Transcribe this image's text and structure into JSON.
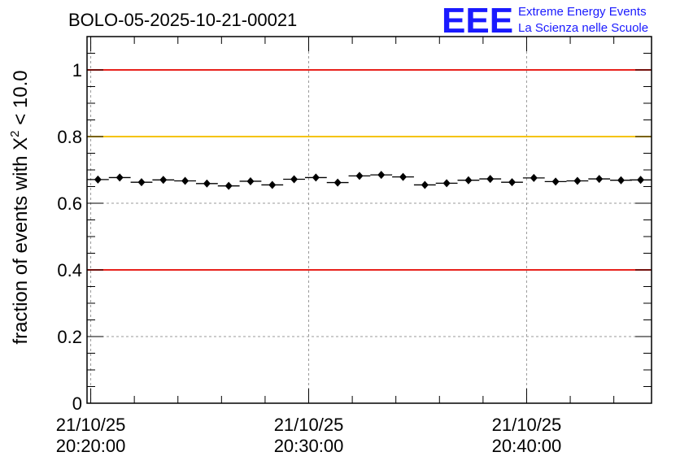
{
  "chart_data": {
    "type": "scatter",
    "title": "BOLO-05-2025-10-21-00021",
    "ylabel_prefix": "fraction of events with X",
    "ylabel_sup": "2",
    "ylabel_suffix": " < 10.0",
    "xlabel": "",
    "ylim": [
      0,
      1.1
    ],
    "yticks": [
      0,
      0.2,
      0.4,
      0.6,
      0.8,
      1
    ],
    "ytick_labels": [
      "0",
      "0.2",
      "0.4",
      "0.6",
      "0.8",
      "1"
    ],
    "x_unit": "minutes since 20:19:50",
    "xlim": [
      0,
      25.9
    ],
    "xticks": [
      {
        "x": 0.17,
        "date": "21/10/25",
        "time": "20:20:00"
      },
      {
        "x": 10.17,
        "date": "21/10/25",
        "time": "20:30:00"
      },
      {
        "x": 20.17,
        "date": "21/10/25",
        "time": "20:40:00"
      }
    ],
    "reference_lines": [
      {
        "y": 1.0,
        "color": "#e8221d"
      },
      {
        "y": 0.8,
        "color": "#f5c300"
      },
      {
        "y": 0.4,
        "color": "#e8221d"
      }
    ],
    "bin_width": 1,
    "series": [
      {
        "name": "fraction",
        "x": [
          0.5,
          1.5,
          2.5,
          3.5,
          4.5,
          5.5,
          6.5,
          7.5,
          8.5,
          9.5,
          10.5,
          11.5,
          12.5,
          13.5,
          14.5,
          15.5,
          16.5,
          17.5,
          18.5,
          19.5,
          20.5,
          21.5,
          22.5,
          23.5,
          24.5,
          25.4
        ],
        "y": [
          0.671,
          0.677,
          0.663,
          0.67,
          0.667,
          0.659,
          0.652,
          0.666,
          0.655,
          0.672,
          0.677,
          0.662,
          0.682,
          0.685,
          0.679,
          0.655,
          0.66,
          0.669,
          0.673,
          0.663,
          0.676,
          0.665,
          0.667,
          0.673,
          0.669,
          0.67
        ],
        "err": [
          0.006,
          0.006,
          0.006,
          0.006,
          0.006,
          0.006,
          0.006,
          0.006,
          0.006,
          0.006,
          0.006,
          0.006,
          0.006,
          0.006,
          0.006,
          0.006,
          0.006,
          0.006,
          0.006,
          0.006,
          0.006,
          0.006,
          0.006,
          0.006,
          0.006,
          0.006
        ]
      }
    ]
  },
  "logo": {
    "mark": "EEE",
    "line1": "Extreme Energy Events",
    "line2": "La Scienza nelle Scuole"
  },
  "colors": {
    "logo": "#1a1aff",
    "grid": "#9a9a9a",
    "marker": "#000000"
  }
}
